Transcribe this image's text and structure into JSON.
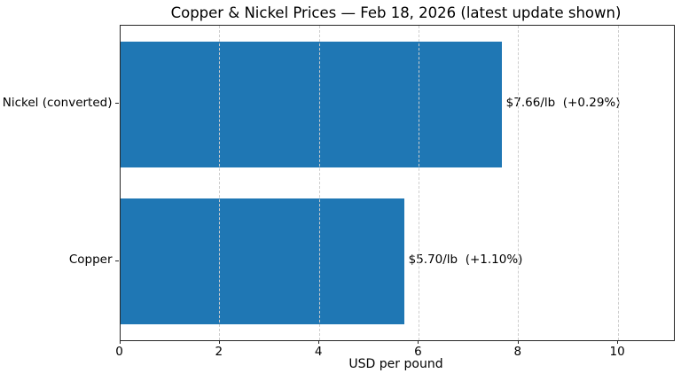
{
  "chart_data": {
    "type": "bar",
    "orientation": "horizontal",
    "title": "Copper & Nickel Prices — Feb 18, 2026 (latest update shown)",
    "xlabel": "USD per pound",
    "ylabel": "",
    "categories": [
      "Nickel (converted)",
      "Copper"
    ],
    "values": [
      7.66,
      5.7
    ],
    "bar_labels": [
      "$7.66/lb  (+0.29%)",
      "$5.70/lb  (+1.10%)"
    ],
    "xlim": [
      0,
      11.12
    ],
    "xticks": [
      0,
      2,
      4,
      6,
      8,
      10
    ],
    "grid": "vertical-dashed",
    "legend": "none",
    "bar_color": "#1f77b4",
    "grid_color": "#cdcdcd",
    "spine_color": "#262626",
    "text_color": "#000000"
  }
}
